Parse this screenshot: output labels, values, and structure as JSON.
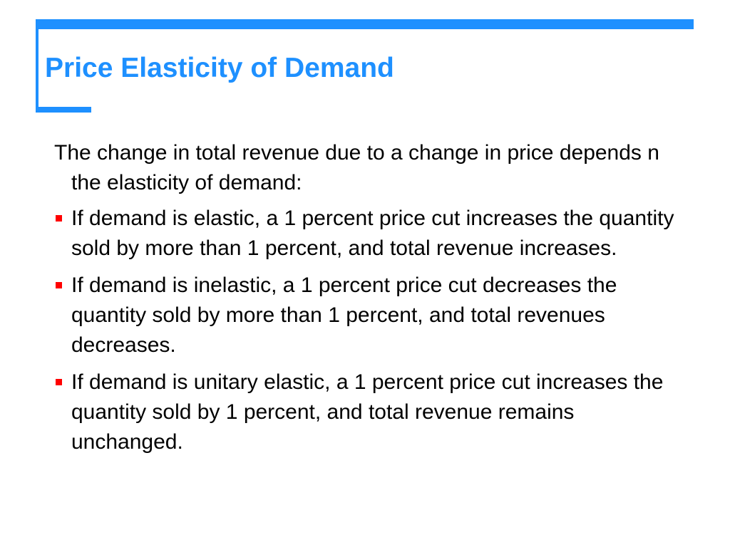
{
  "slide": {
    "title": "Price Elasticity of Demand",
    "accent_color": "#1e90ff",
    "bullet_color": "#ff0000",
    "intro": "The change in total revenue due to a change in price depends n the elasticity of demand:",
    "bullets": [
      {
        "icon": "square-bullet-icon",
        "text": "If demand is elastic, a 1 percent price cut increases the quantity sold by more than 1 percent, and total revenue increases."
      },
      {
        "icon": "square-bullet-icon",
        "text": "If demand is inelastic, a 1 percent price cut decreases the quantity sold by more than 1 percent, and total revenues decreases."
      },
      {
        "icon": "square-bullet-icon",
        "text": "If demand is unitary elastic, a 1 percent price cut increases the quantity sold by 1 percent, and total revenue remains unchanged."
      }
    ]
  }
}
